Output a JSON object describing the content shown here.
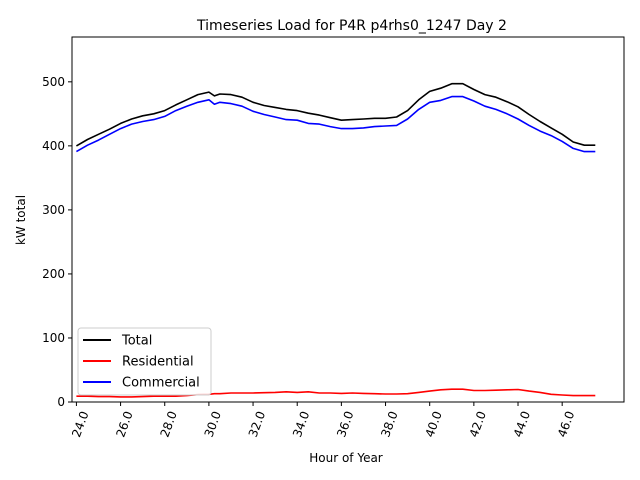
{
  "chart_data": {
    "type": "line",
    "title": "Timeseries Load for P4R p4rhs0_1247  Day 2",
    "xlabel": "Hour of Year",
    "ylabel": "kW total",
    "xlim": [
      23.8,
      48.8
    ],
    "ylim": [
      0,
      570
    ],
    "xticks": [
      24.0,
      26.0,
      28.0,
      30.0,
      32.0,
      34.0,
      36.0,
      38.0,
      40.0,
      42.0,
      44.0,
      46.0
    ],
    "xtick_labels": [
      "24.0",
      "26.0",
      "28.0",
      "30.0",
      "32.0",
      "34.0",
      "36.0",
      "38.0",
      "40.0",
      "42.0",
      "44.0",
      "46.0"
    ],
    "yticks": [
      0,
      100,
      200,
      300,
      400,
      500
    ],
    "ytick_labels": [
      "0",
      "100",
      "200",
      "300",
      "400",
      "500"
    ],
    "legend_position": "lower-left",
    "grid": false,
    "x": [
      24.0,
      24.5,
      25.0,
      25.5,
      26.0,
      26.5,
      27.0,
      27.5,
      28.0,
      28.5,
      29.0,
      29.5,
      30.0,
      30.25,
      30.5,
      31.0,
      31.5,
      32.0,
      32.5,
      33.0,
      33.5,
      34.0,
      34.5,
      35.0,
      35.5,
      36.0,
      36.5,
      37.0,
      37.5,
      38.0,
      38.5,
      39.0,
      39.5,
      40.0,
      40.5,
      41.0,
      41.5,
      42.0,
      42.5,
      43.0,
      43.5,
      44.0,
      44.5,
      45.0,
      45.5,
      46.0,
      46.5,
      47.0,
      47.5
    ],
    "series": [
      {
        "name": "Total",
        "color": "#000000",
        "values": [
          400,
          410,
          418,
          426,
          435,
          442,
          447,
          450,
          455,
          464,
          472,
          480,
          484,
          478,
          481,
          480,
          476,
          468,
          463,
          460,
          457,
          455,
          451,
          448,
          444,
          440,
          441,
          442,
          443,
          443,
          445,
          455,
          472,
          485,
          490,
          497,
          497,
          488,
          480,
          476,
          469,
          461,
          449,
          438,
          428,
          418,
          406,
          401,
          401
        ]
      },
      {
        "name": "Residential",
        "color": "#ff0000",
        "values": [
          9,
          9,
          8.5,
          8.5,
          8,
          8,
          8.5,
          9,
          9,
          9,
          10,
          11.5,
          12,
          13,
          13,
          14,
          14,
          14,
          14.5,
          15,
          16,
          15,
          16,
          14,
          14,
          13.5,
          14,
          13.5,
          13,
          12.5,
          12.5,
          13,
          15,
          17,
          19,
          20,
          20,
          18,
          18,
          18.5,
          19,
          19.5,
          17,
          15,
          12,
          11,
          10,
          10,
          10
        ]
      },
      {
        "name": "Commercial",
        "color": "#0000ff",
        "values": [
          391,
          401,
          409,
          418,
          427,
          434,
          438,
          441,
          446,
          455,
          462,
          468,
          472,
          465,
          468,
          466,
          462,
          454,
          449,
          445,
          441,
          440,
          435,
          434,
          430,
          427,
          427,
          428,
          430,
          431,
          432,
          442,
          457,
          468,
          471,
          477,
          477,
          470,
          462,
          457,
          450,
          442,
          432,
          423,
          416,
          407,
          396,
          391,
          391
        ]
      }
    ]
  }
}
